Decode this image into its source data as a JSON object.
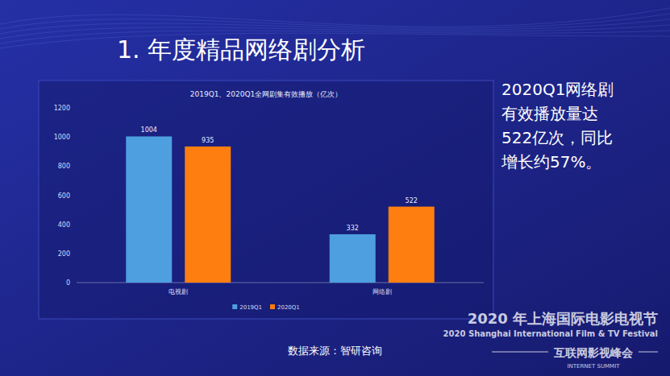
{
  "page": {
    "heading": "1. 年度精品网络剧分析",
    "note": [
      "2020Q1网络剧",
      "有效播放量达",
      "522亿次，同比",
      "增长约57%。"
    ],
    "source": "数据来源：智研咨询",
    "event": [
      "2020 年上海国际电影电视节",
      "2020 Shanghai International Film & TV Festival",
      "互联网影视峰会",
      "INTERNET SUMMIT"
    ]
  },
  "chart_data": {
    "type": "bar",
    "title": "2019Q1、2020Q1全网剧集有效播放（亿次）",
    "categories": [
      "电视剧",
      "网络剧"
    ],
    "series": [
      {
        "name": "2019Q1",
        "color": "#4d9fe0",
        "values": [
          1004,
          332
        ]
      },
      {
        "name": "2020Q1",
        "color": "#fe7e0f",
        "values": [
          935,
          522
        ]
      }
    ],
    "ylim": [
      0,
      1200
    ],
    "yticks": [
      0,
      200,
      400,
      600,
      800,
      1000,
      1200
    ],
    "grid": false,
    "legend": "bottom",
    "data_labels": true
  }
}
